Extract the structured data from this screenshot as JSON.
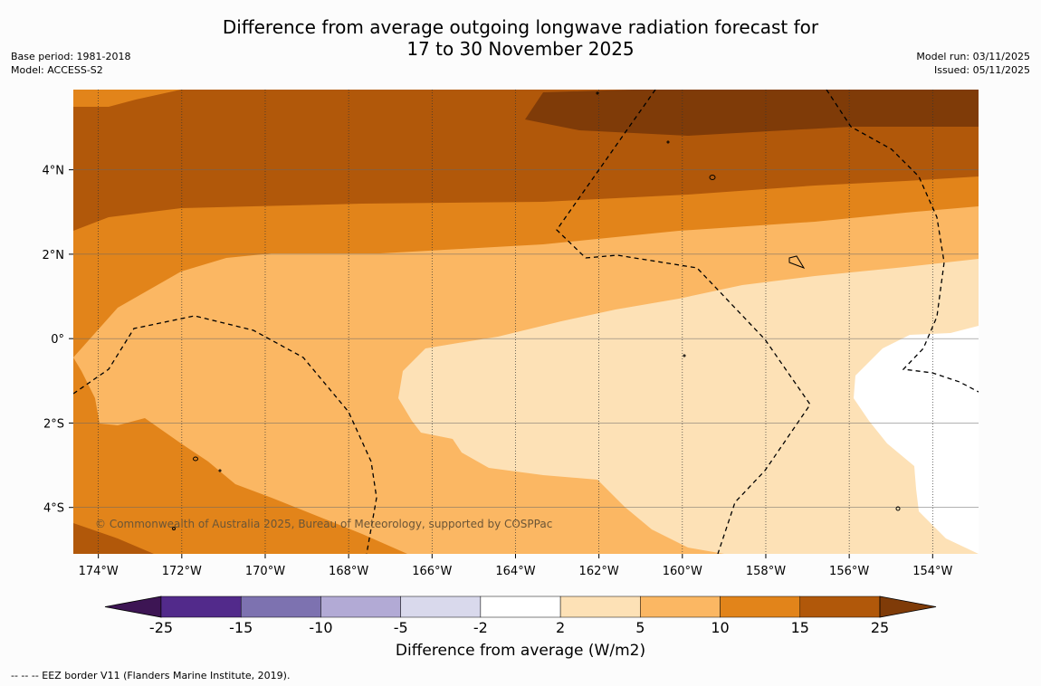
{
  "title": {
    "line1": "Difference from average outgoing longwave radiation forecast for",
    "line2": "17 to 30 November 2025"
  },
  "meta_left": {
    "base_period": "Base period: 1981-2018",
    "model": "Model: ACCESS-S2"
  },
  "meta_right": {
    "model_run": "Model run: 03/11/2025",
    "issued": "Issued: 05/11/2025"
  },
  "map": {
    "lon_range": [
      -174.6,
      -152.9
    ],
    "lat_range": [
      -5.1,
      5.9
    ],
    "lon_ticks": [
      {
        "value": -174,
        "label": "174°W"
      },
      {
        "value": -172,
        "label": "172°W"
      },
      {
        "value": -170,
        "label": "170°W"
      },
      {
        "value": -168,
        "label": "168°W"
      },
      {
        "value": -166,
        "label": "166°W"
      },
      {
        "value": -164,
        "label": "164°W"
      },
      {
        "value": -162,
        "label": "162°W"
      },
      {
        "value": -160,
        "label": "160°W"
      },
      {
        "value": -158,
        "label": "158°W"
      },
      {
        "value": -156,
        "label": "156°W"
      },
      {
        "value": -154,
        "label": "154°W"
      }
    ],
    "lat_ticks": [
      {
        "value": 4,
        "label": "4°N"
      },
      {
        "value": 2,
        "label": "2°N"
      },
      {
        "value": 0,
        "label": "0°"
      },
      {
        "value": -2,
        "label": "2°S"
      },
      {
        "value": -4,
        "label": "4°S"
      }
    ],
    "copyright": "© Commonwealth of Australia 2025, Bureau of Meteorology, supported by COSPPac"
  },
  "colorbar": {
    "title": "Difference from average (W/m2)",
    "ticks": [
      "-25",
      "-15",
      "-10",
      "-5",
      "-2",
      "2",
      "5",
      "10",
      "15",
      "25"
    ],
    "colors": [
      "#3d1554",
      "#522a8b",
      "#7d72b0",
      "#b2aad5",
      "#d9d9ec",
      "#ffffff",
      "#fde1b6",
      "#fbb763",
      "#e2841a",
      "#b1580a",
      "#7f3b08"
    ]
  },
  "footer": "--  --  -- EEZ border V11 (Flanders Marine Institute, 2019)."
}
